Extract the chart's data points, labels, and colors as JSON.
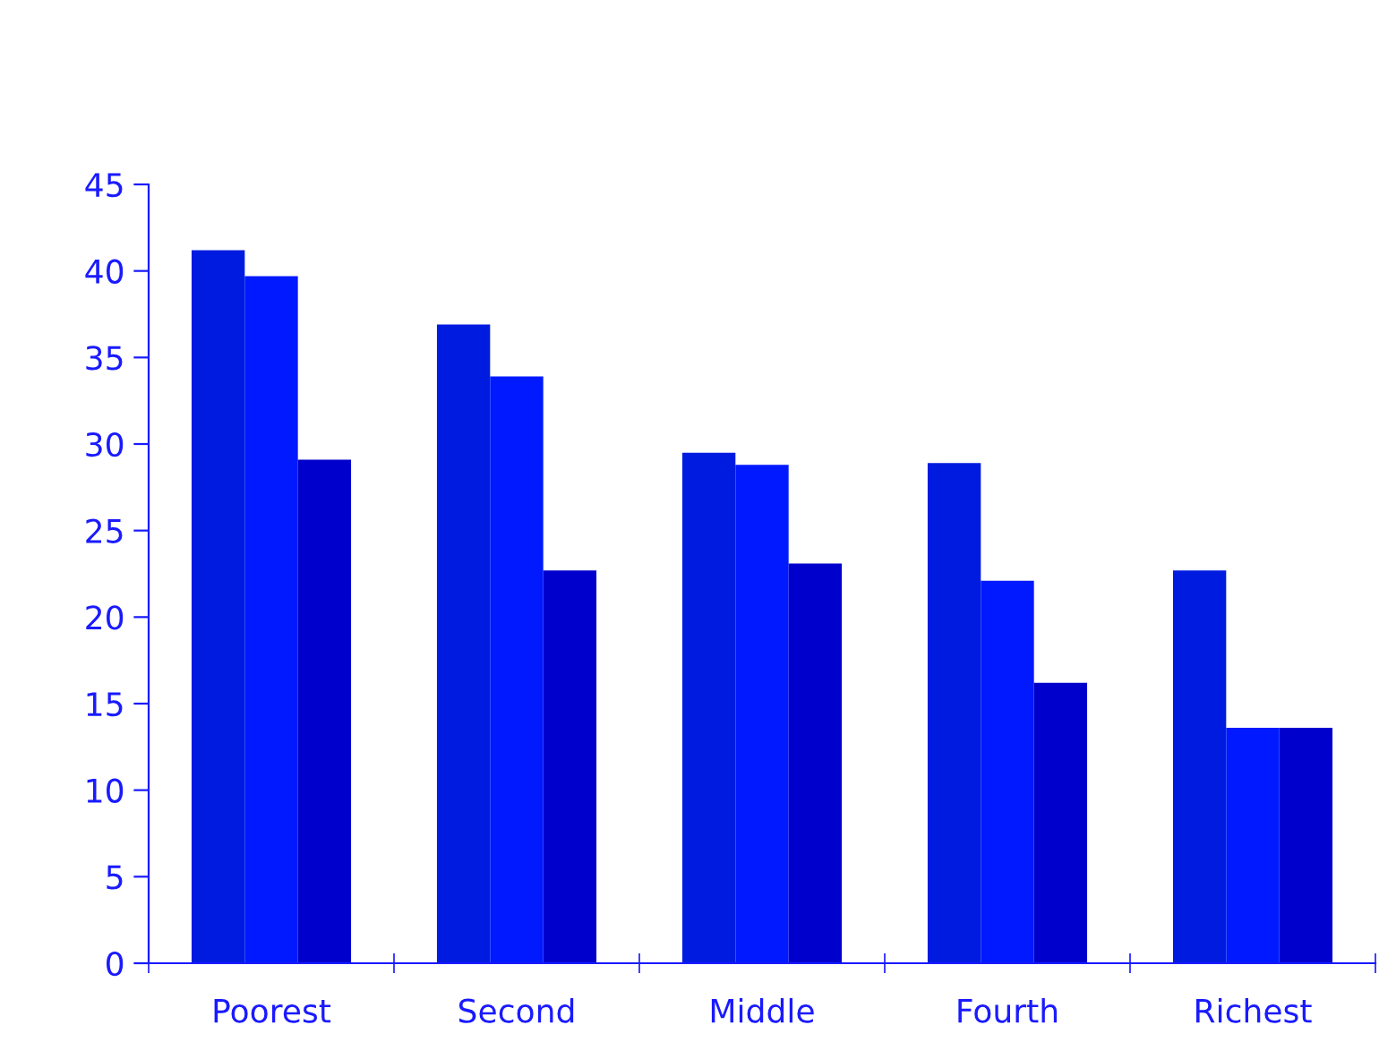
{
  "chart_data": {
    "type": "bar",
    "categories": [
      "Poorest",
      "Second",
      "Middle",
      "Fourth",
      "Richest"
    ],
    "series": [
      {
        "color": "#001be0",
        "values": [
          41.2,
          36.9,
          29.5,
          28.9,
          22.7
        ]
      },
      {
        "color": "#0019ff",
        "values": [
          39.7,
          33.9,
          28.8,
          22.1,
          13.6
        ]
      },
      {
        "color": "#0000cc",
        "values": [
          29.1,
          22.7,
          23.1,
          16.2,
          13.6
        ]
      }
    ],
    "ylim": [
      0,
      45
    ],
    "yticks": [
      0,
      5,
      10,
      15,
      20,
      25,
      30,
      35,
      40,
      45
    ],
    "grid": false,
    "legend": false
  }
}
